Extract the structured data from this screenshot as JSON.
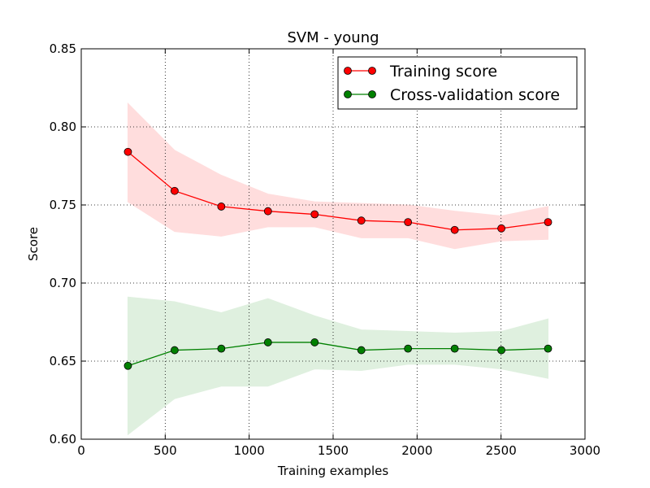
{
  "chart_data": {
    "type": "line",
    "title": "SVM - young",
    "xlabel": "Training examples",
    "ylabel": "Score",
    "xlim": [
      0,
      3000
    ],
    "ylim": [
      0.6,
      0.85
    ],
    "xticks": [
      "0",
      "500",
      "1000",
      "1500",
      "2000",
      "2500",
      "3000"
    ],
    "yticks": [
      "0.60",
      "0.65",
      "0.70",
      "0.75",
      "0.80",
      "0.85"
    ],
    "grid": true,
    "legend_position": "top-right",
    "x": [
      278,
      556,
      834,
      1112,
      1390,
      1668,
      1946,
      2224,
      2502,
      2780
    ],
    "series": [
      {
        "name": "Training score",
        "color": "#ff0000",
        "band_color": "#ffdddd",
        "values": [
          0.784,
          0.759,
          0.749,
          0.746,
          0.744,
          0.74,
          0.739,
          0.734,
          0.735,
          0.739
        ],
        "upper": [
          0.815,
          0.785,
          0.769,
          0.757,
          0.752,
          0.751,
          0.75,
          0.746,
          0.743,
          0.749
        ],
        "lower": [
          0.752,
          0.733,
          0.73,
          0.736,
          0.736,
          0.729,
          0.729,
          0.722,
          0.727,
          0.728
        ]
      },
      {
        "name": "Cross-validation score",
        "color": "#008000",
        "band_color": "#dff0df",
        "values": [
          0.647,
          0.657,
          0.658,
          0.662,
          0.662,
          0.657,
          0.658,
          0.658,
          0.657,
          0.658
        ],
        "upper": [
          0.691,
          0.688,
          0.681,
          0.69,
          0.679,
          0.67,
          0.669,
          0.668,
          0.669,
          0.677
        ],
        "lower": [
          0.603,
          0.626,
          0.634,
          0.634,
          0.645,
          0.644,
          0.648,
          0.648,
          0.645,
          0.639
        ]
      }
    ]
  }
}
